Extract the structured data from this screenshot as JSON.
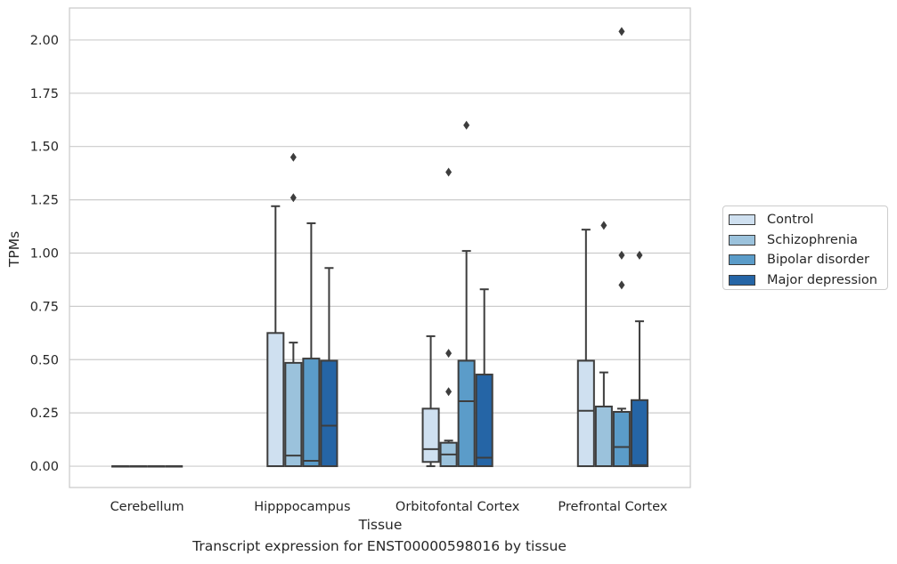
{
  "chart_data": {
    "type": "boxplot",
    "xlabel": "Tissue",
    "ylabel": "TPMs",
    "caption": "Transcript expression for ENST00000598016 by tissue",
    "ylim": [
      -0.1,
      2.15
    ],
    "yticks": [
      "0.00",
      "0.25",
      "0.50",
      "0.75",
      "1.00",
      "1.25",
      "1.50",
      "1.75",
      "2.00"
    ],
    "grid": true,
    "legend_position": "right",
    "categories": [
      "Cerebellum",
      "Hipppocampus",
      "Orbitofontal Cortex",
      "Prefrontal Cortex"
    ],
    "series": [
      {
        "name": "Control",
        "color": "#cfe0f0",
        "boxes": [
          {
            "q1": 0,
            "median": 0,
            "q3": 0,
            "whislo": 0,
            "whishi": 0,
            "fliers": []
          },
          {
            "q1": 0,
            "median": 0,
            "q3": 0.625,
            "whislo": 0,
            "whishi": 1.22,
            "fliers": []
          },
          {
            "q1": 0.02,
            "median": 0.08,
            "q3": 0.27,
            "whislo": 0,
            "whishi": 0.61,
            "fliers": []
          },
          {
            "q1": 0,
            "median": 0.26,
            "q3": 0.495,
            "whislo": 0,
            "whishi": 1.11,
            "fliers": []
          }
        ]
      },
      {
        "name": "Schizophrenia",
        "color": "#9bc2dc",
        "boxes": [
          {
            "q1": 0,
            "median": 0,
            "q3": 0,
            "whislo": 0,
            "whishi": 0,
            "fliers": []
          },
          {
            "q1": 0,
            "median": 0.05,
            "q3": 0.485,
            "whislo": 0,
            "whishi": 0.58,
            "fliers": [
              1.26,
              1.45
            ]
          },
          {
            "q1": 0,
            "median": 0.055,
            "q3": 0.11,
            "whislo": 0,
            "whishi": 0.12,
            "fliers": [
              0.35,
              0.53,
              1.38
            ]
          },
          {
            "q1": 0,
            "median": 0,
            "q3": 0.28,
            "whislo": 0,
            "whishi": 0.44,
            "fliers": [
              1.13
            ]
          }
        ]
      },
      {
        "name": "Bipolar disorder",
        "color": "#5b9cc9",
        "boxes": [
          {
            "q1": 0,
            "median": 0,
            "q3": 0,
            "whislo": 0,
            "whishi": 0,
            "fliers": []
          },
          {
            "q1": 0,
            "median": 0.025,
            "q3": 0.505,
            "whislo": 0,
            "whishi": 1.14,
            "fliers": []
          },
          {
            "q1": 0,
            "median": 0.305,
            "q3": 0.495,
            "whislo": 0,
            "whishi": 1.01,
            "fliers": [
              1.6
            ]
          },
          {
            "q1": 0,
            "median": 0.09,
            "q3": 0.255,
            "whislo": 0,
            "whishi": 0.27,
            "fliers": [
              0.85,
              0.99,
              2.04
            ]
          }
        ]
      },
      {
        "name": "Major depression",
        "color": "#2565a6",
        "boxes": [
          {
            "q1": 0,
            "median": 0,
            "q3": 0,
            "whislo": 0,
            "whishi": 0,
            "fliers": []
          },
          {
            "q1": 0,
            "median": 0.19,
            "q3": 0.495,
            "whislo": 0,
            "whishi": 0.93,
            "fliers": []
          },
          {
            "q1": 0,
            "median": 0.04,
            "q3": 0.43,
            "whislo": 0,
            "whishi": 0.83,
            "fliers": []
          },
          {
            "q1": 0,
            "median": 0.005,
            "q3": 0.31,
            "whislo": 0,
            "whishi": 0.68,
            "fliers": [
              0.99
            ]
          }
        ]
      }
    ]
  }
}
